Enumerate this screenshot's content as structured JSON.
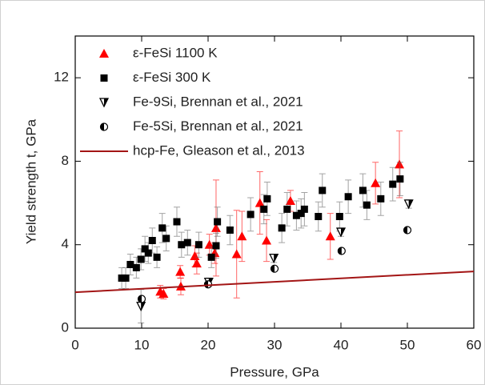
{
  "chart_data": {
    "type": "scatter",
    "x_label": "Pressure, GPa",
    "y_label": "Yield strength t, GPa",
    "xlim": [
      0,
      60
    ],
    "xticks": [
      0,
      10,
      20,
      30,
      40,
      50,
      60
    ],
    "ylim": [
      0,
      14
    ],
    "yticks": [
      0,
      4,
      8,
      12
    ],
    "legend": "top-left",
    "series": [
      {
        "name": "ε-FeSi 1100 K",
        "color": "#ff0000",
        "marker": "triangle-up",
        "x": [
          12.8,
          13.3,
          15.8,
          15.9,
          18.0,
          18.3,
          20.2,
          21.0,
          21.2,
          24.3,
          25.1,
          27.8,
          28.8,
          32.4,
          38.4,
          45.2,
          48.8
        ],
        "values": [
          1.75,
          1.65,
          2.7,
          2.0,
          3.45,
          3.1,
          4.0,
          3.6,
          4.8,
          3.55,
          4.4,
          6.0,
          4.2,
          6.1,
          4.4,
          6.95,
          7.85
        ],
        "errors": [
          0.3,
          0.25,
          0.3,
          0.4,
          0.5,
          0.5,
          0.5,
          0.5,
          2.3,
          2.1,
          1.2,
          1.5,
          1.0,
          0.5,
          1.1,
          1.0,
          1.6
        ]
      },
      {
        "name": "ε-FeSi 300 K",
        "color": "#000000",
        "marker": "square",
        "x": [
          7,
          7.6,
          8.3,
          9.2,
          9.9,
          10.5,
          11,
          11.6,
          12.3,
          13.1,
          13.7,
          15.3,
          16,
          16.9,
          18.6,
          20.5,
          21.2,
          21.4,
          23.3,
          26.4,
          28.4,
          28.9,
          31.1,
          31.9,
          33.3,
          34,
          34.5,
          36.6,
          37.2,
          39.8,
          41.1,
          43.3,
          43.9,
          46,
          47.8,
          48.9
        ],
        "values": [
          2.4,
          2.4,
          3.05,
          2.9,
          3.3,
          3.8,
          3.6,
          4.2,
          3.4,
          4.8,
          4.3,
          5.1,
          4.0,
          4.1,
          4.0,
          3.4,
          3.95,
          5.1,
          4.7,
          5.45,
          5.7,
          6.2,
          4.8,
          5.7,
          5.4,
          5.5,
          5.7,
          5.35,
          6.6,
          5.35,
          6.3,
          6.6,
          5.9,
          6.2,
          6.9,
          7.15
        ],
        "errors": [
          0.5,
          0.5,
          0.5,
          0.5,
          0.5,
          0.6,
          0.5,
          0.6,
          0.5,
          0.7,
          0.6,
          0.7,
          0.6,
          0.6,
          0.6,
          0.5,
          0.6,
          0.7,
          0.7,
          0.8,
          0.7,
          0.8,
          0.7,
          0.8,
          0.7,
          0.7,
          0.8,
          0.7,
          0.8,
          0.7,
          0.8,
          0.8,
          0.7,
          0.8,
          0.8,
          0.8
        ]
      },
      {
        "name": "Fe-9Si, Brennan et al., 2021",
        "color": "#000000",
        "marker": "triangle-down-open",
        "x": [
          9.9,
          20.1,
          29.9,
          40,
          50.2
        ],
        "values": [
          1.05,
          2.2,
          3.35,
          4.6,
          5.95
        ],
        "errors": [
          0.8,
          0.2,
          0.2,
          0.2,
          0.2
        ]
      },
      {
        "name": "Fe-5Si, Brennan et al., 2021",
        "color": "#000000",
        "marker": "half-circle",
        "x": [
          10,
          20,
          30,
          40.1,
          50
        ],
        "values": [
          1.4,
          2.1,
          2.85,
          3.7,
          4.7
        ]
      },
      {
        "name": "hcp-Fe, Gleason et al., 2013",
        "color": "#a31515",
        "marker": "line",
        "x": [
          0,
          60
        ],
        "values": [
          1.72,
          2.72
        ]
      }
    ]
  }
}
